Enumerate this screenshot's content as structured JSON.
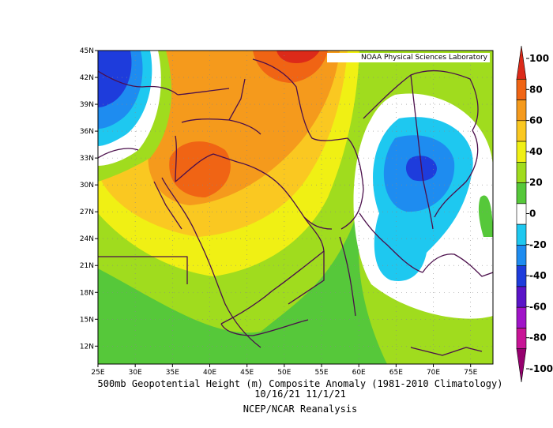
{
  "credit": "NOAA Physical Sciences Laboratory",
  "caption": {
    "line1": "500mb Geopotential Height (m) Composite Anomaly (1981-2010 Climatology)",
    "line2": "10/16/21 11/1/21",
    "line3": "NCEP/NCAR Reanalysis"
  },
  "chart_data": {
    "type": "heatmap",
    "variable": "500mb Geopotential Height (m) Composite Anomaly",
    "x_range": [
      25,
      78
    ],
    "y_range": [
      10,
      45
    ],
    "x_ticks": [
      "25E",
      "30E",
      "35E",
      "40E",
      "45E",
      "50E",
      "55E",
      "60E",
      "65E",
      "70E",
      "75E"
    ],
    "y_ticks": [
      "45N",
      "42N",
      "39N",
      "36N",
      "33N",
      "30N",
      "27N",
      "24N",
      "21N",
      "18N",
      "15N",
      "12N"
    ],
    "colorbar": {
      "labels": [
        "100",
        "80",
        "60",
        "40",
        "20",
        "0",
        "-20",
        "-40",
        "-60",
        "-80",
        "-100"
      ],
      "colors": [
        "#dc2a19",
        "#f06414",
        "#f59a1c",
        "#fac821",
        "#f0f014",
        "#a0dc1e",
        "#56c83a",
        "#ffffff",
        "#1ec8f0",
        "#1e8cf0",
        "#1e3cdc",
        "#5a14c8",
        "#a014c8",
        "#c81496",
        "#96006e"
      ]
    },
    "features": [
      {
        "name": "positive anomaly maximum",
        "lon": 52,
        "lat": 45,
        "value": 100
      },
      {
        "name": "positive anomaly center",
        "lon": 43,
        "lat": 31,
        "value": 60
      },
      {
        "name": "negative anomaly west",
        "lon": 27,
        "lat": 41,
        "value": -60
      },
      {
        "name": "negative anomaly east",
        "lon": 68,
        "lat": 32,
        "value": -40
      }
    ]
  },
  "colors": {
    "frame": "#000000",
    "border": "#4b0f4b",
    "grid": "#888888"
  }
}
